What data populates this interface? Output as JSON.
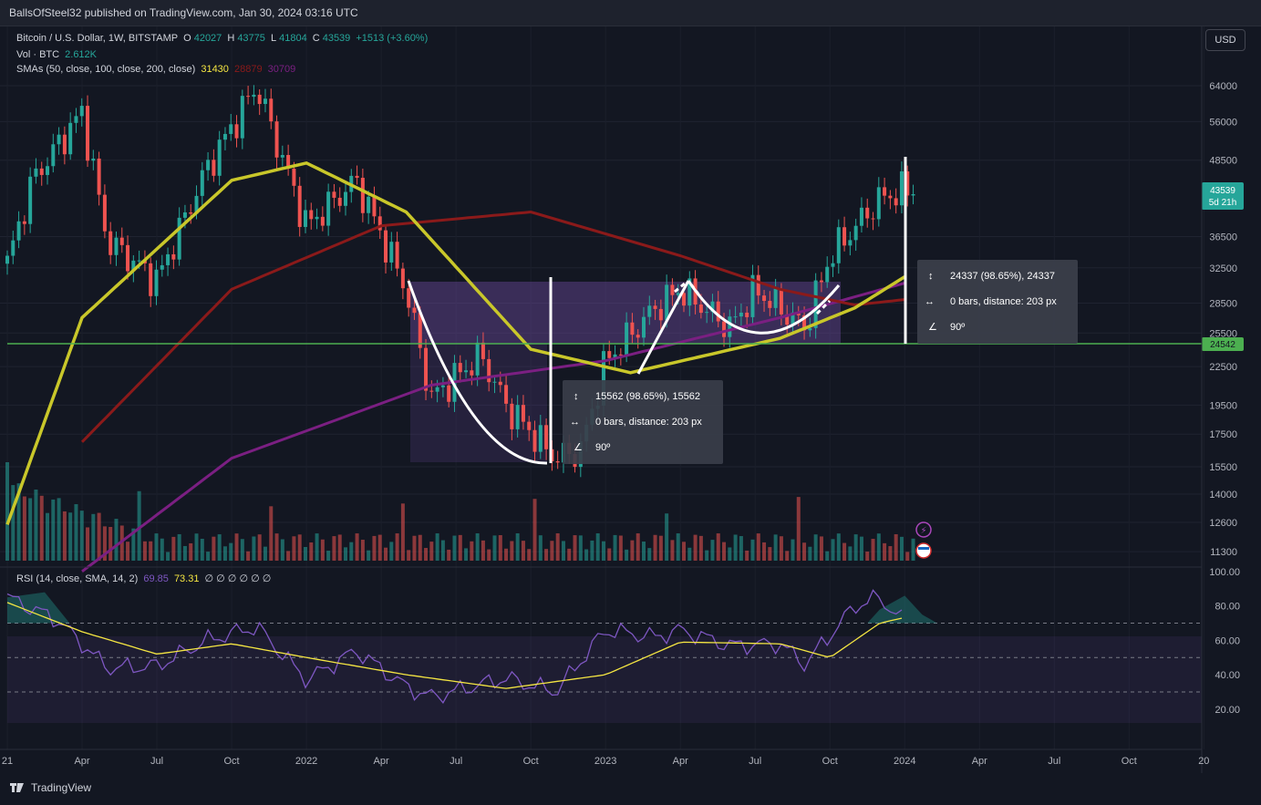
{
  "header": {
    "publish_text": "BallsOfSteel32 published on TradingView.com, Jan 30, 2024 03:16 UTC"
  },
  "legend": {
    "symbol": "Bitcoin / U.S. Dollar, 1W, BITSTAMP",
    "o_label": "O",
    "o": "42027",
    "h_label": "H",
    "h": "43775",
    "l_label": "L",
    "l": "41804",
    "c_label": "C",
    "c": "43539",
    "change": "+1513 (+3.60%)",
    "vol_label": "Vol · BTC",
    "vol": "2.612K",
    "sma_label": "SMAs (50, close, 100, close, 200, close)",
    "sma50": "31430",
    "sma100": "28879",
    "sma200": "30709",
    "rsi_label": "RSI (14, close, SMA, 14, 2)",
    "rsi": "69.85",
    "rsi_ma": "73.31",
    "rsi_na": "∅ ∅ ∅ ∅ ∅ ∅"
  },
  "currency_button": "USD",
  "footer": {
    "brand": "TradingView"
  },
  "colors": {
    "sma50": "#c9c72a",
    "sma100": "#8b1a1a",
    "sma200": "#7b1f82",
    "up": "#26a69a",
    "down": "#ef5350",
    "rsi": "#7e57c2",
    "rsi_ma": "#f5e642",
    "support": "#4caf50"
  },
  "chart_data": [
    {
      "type": "candlestick",
      "title": "Bitcoin / U.S. Dollar, 1W, BITSTAMP",
      "x_ticks": [
        "21",
        "Apr",
        "Jul",
        "Oct",
        "2022",
        "Apr",
        "Jul",
        "Oct",
        "2023",
        "Apr",
        "Jul",
        "Oct",
        "2024",
        "Apr",
        "Jul",
        "Oct",
        "20"
      ],
      "y_ticks": [
        "64000",
        "56000",
        "48500",
        "43539",
        "36500",
        "32500",
        "28500",
        "25500",
        "22500",
        "19500",
        "17500",
        "15500",
        "14000",
        "12600",
        "11300"
      ],
      "y_scale": "log",
      "price_path": [
        [
          "2021-01",
          33000
        ],
        [
          "2021-02",
          45000
        ],
        [
          "2021-04",
          58000
        ],
        [
          "2021-05",
          36000
        ],
        [
          "2021-07",
          31000
        ],
        [
          "2021-09",
          47000
        ],
        [
          "2021-11",
          64000
        ],
        [
          "2022-01",
          38000
        ],
        [
          "2022-03",
          45000
        ],
        [
          "2022-05",
          30000
        ],
        [
          "2022-06",
          20000
        ],
        [
          "2022-08",
          23500
        ],
        [
          "2022-09",
          19500
        ],
        [
          "2022-11",
          16000
        ],
        [
          "2022-12",
          16500
        ],
        [
          "2023-01",
          23000
        ],
        [
          "2023-03",
          28000
        ],
        [
          "2023-04",
          30000
        ],
        [
          "2023-06",
          26000
        ],
        [
          "2023-07",
          30000
        ],
        [
          "2023-09",
          26000
        ],
        [
          "2023-10",
          34000
        ],
        [
          "2023-12",
          42000
        ],
        [
          "2024-01",
          43539
        ]
      ],
      "sma50": [
        [
          "2021-01",
          12500
        ],
        [
          "2021-04",
          27000
        ],
        [
          "2021-10",
          45000
        ],
        [
          "2022-01",
          48000
        ],
        [
          "2022-05",
          40000
        ],
        [
          "2022-10",
          24000
        ],
        [
          "2023-02",
          22000
        ],
        [
          "2023-08",
          25000
        ],
        [
          "2023-11",
          28000
        ],
        [
          "2024-01",
          31430
        ]
      ],
      "sma100": [
        [
          "2021-04",
          17000
        ],
        [
          "2021-10",
          30000
        ],
        [
          "2022-04",
          38000
        ],
        [
          "2022-10",
          40000
        ],
        [
          "2023-04",
          34000
        ],
        [
          "2023-08",
          30000
        ],
        [
          "2023-11",
          28300
        ],
        [
          "2024-01",
          28879
        ]
      ],
      "sma200": [
        [
          "2021-04",
          10500
        ],
        [
          "2021-10",
          16000
        ],
        [
          "2022-06",
          21000
        ],
        [
          "2023-01",
          23000
        ],
        [
          "2023-08",
          27000
        ],
        [
          "2024-01",
          30709
        ]
      ],
      "current_price_label": "43539",
      "countdown_label": "5d 21h",
      "support_level": 24542,
      "support_label": "24542",
      "measurements": [
        {
          "delta": "24337 (98.65%), 24337",
          "bars": "0 bars, distance: 203 px",
          "angle": "90º"
        },
        {
          "delta": "15562 (98.65%), 15562",
          "bars": "0 bars, distance: 203 px",
          "angle": "90º"
        }
      ]
    },
    {
      "type": "line",
      "title": "RSI (14, close, SMA, 14, 2)",
      "y_ticks": [
        "100.00",
        "80.00",
        "60.00",
        "40.00",
        "20.00"
      ],
      "levels": [
        70,
        50,
        30
      ],
      "rsi_path": [
        [
          "2021-01",
          85
        ],
        [
          "2021-03",
          72
        ],
        [
          "2021-05",
          44
        ],
        [
          "2021-07",
          45
        ],
        [
          "2021-09",
          60
        ],
        [
          "2021-11",
          68
        ],
        [
          "2022-01",
          37
        ],
        [
          "2022-03",
          54
        ],
        [
          "2022-05",
          33
        ],
        [
          "2022-06",
          27
        ],
        [
          "2022-09",
          38
        ],
        [
          "2022-11",
          30
        ],
        [
          "2023-01",
          66
        ],
        [
          "2023-03",
          62
        ],
        [
          "2023-04",
          66
        ],
        [
          "2023-06",
          57
        ],
        [
          "2023-08",
          58
        ],
        [
          "2023-09",
          46
        ],
        [
          "2023-11",
          80
        ],
        [
          "2023-12",
          85
        ],
        [
          "2024-01",
          70
        ]
      ],
      "rsi_ma_path": [
        [
          "2021-01",
          82
        ],
        [
          "2021-04",
          65
        ],
        [
          "2021-07",
          52
        ],
        [
          "2021-10",
          58
        ],
        [
          "2022-01",
          50
        ],
        [
          "2022-05",
          40
        ],
        [
          "2022-09",
          32
        ],
        [
          "2023-01",
          40
        ],
        [
          "2023-04",
          59
        ],
        [
          "2023-08",
          58
        ],
        [
          "2023-10",
          50
        ],
        [
          "2023-12",
          70
        ],
        [
          "2024-01",
          73.31
        ]
      ]
    }
  ]
}
